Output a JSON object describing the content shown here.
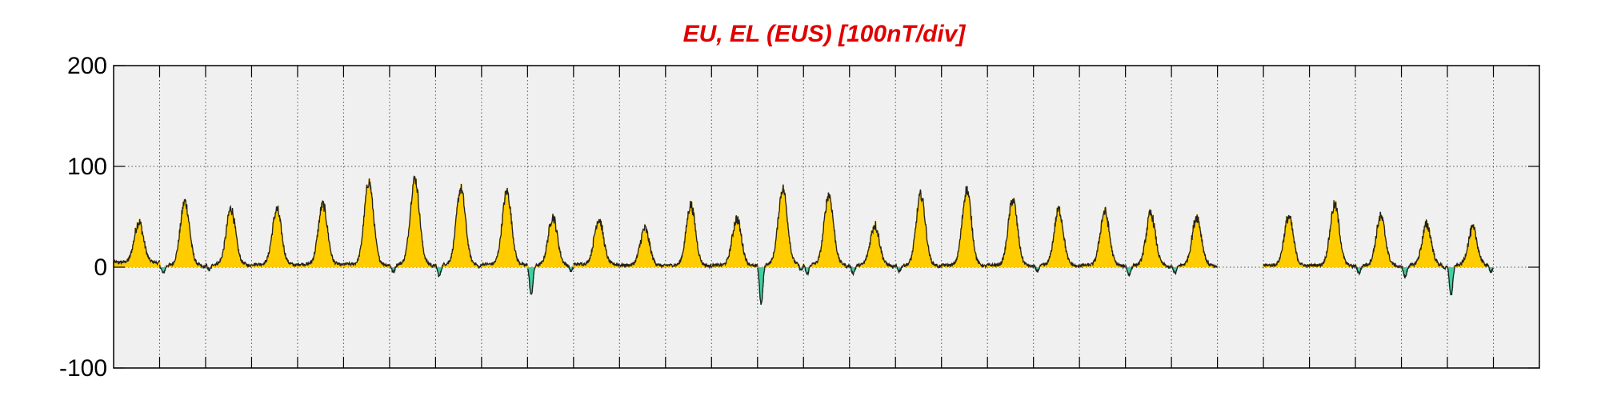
{
  "chart_data": {
    "type": "area",
    "title": "EU, EL (EUS)  [100nT/div]",
    "xlabel": "",
    "ylabel": "",
    "ylim": [
      -100,
      200
    ],
    "yticks": [
      -100,
      0,
      100,
      200
    ],
    "x_range": [
      0,
      31
    ],
    "x_grid": [
      1,
      2,
      3,
      4,
      5,
      6,
      7,
      8,
      9,
      10,
      11,
      12,
      13,
      14,
      15,
      16,
      17,
      18,
      19,
      20,
      21,
      22,
      23,
      24,
      25,
      26,
      27,
      28,
      29,
      30
    ],
    "x_grid_visible": true,
    "y_grid_visible": true,
    "background_color": "#f0f0f0",
    "colors": {
      "title": "#e00000",
      "positive_fill": "#ffcc00",
      "negative_fill": "#40d0a0",
      "line": "#222222"
    },
    "series": [
      {
        "type": "eu_el_envelope",
        "days": [
          {
            "peak": 45,
            "min": -3,
            "base": 5
          },
          {
            "peak": 65,
            "min": -8,
            "base": 2
          },
          {
            "peak": 58,
            "min": -6,
            "base": 3
          },
          {
            "peak": 57,
            "min": -4,
            "base": 3
          },
          {
            "peak": 62,
            "min": -3,
            "base": 3
          },
          {
            "peak": 85,
            "min": -4,
            "base": 3
          },
          {
            "peak": 88,
            "min": -8,
            "base": 3
          },
          {
            "peak": 78,
            "min": -12,
            "base": 3
          },
          {
            "peak": 75,
            "min": -5,
            "base": 3
          },
          {
            "peak": 50,
            "min": -30,
            "base": 2
          },
          {
            "peak": 48,
            "min": -2,
            "base": 3
          },
          {
            "peak": 38,
            "min": -3,
            "base": 2
          },
          {
            "peak": 62,
            "min": -4,
            "base": 2
          },
          {
            "peak": 48,
            "min": -5,
            "base": 2
          },
          {
            "peak": 78,
            "min": -40,
            "base": 3
          },
          {
            "peak": 72,
            "min": -10,
            "base": 3
          },
          {
            "peak": 42,
            "min": -8,
            "base": 2
          },
          {
            "peak": 72,
            "min": -6,
            "base": 2
          },
          {
            "peak": 77,
            "min": -4,
            "base": 2
          },
          {
            "peak": 67,
            "min": -5,
            "base": 2
          },
          {
            "peak": 57,
            "min": -6,
            "base": 2
          },
          {
            "peak": 55,
            "min": -5,
            "base": 2
          },
          {
            "peak": 53,
            "min": -10,
            "base": 2
          },
          {
            "peak": 50,
            "min": -8,
            "base": 2
          },
          {
            "peak": 0,
            "min": 0,
            "base": 0
          },
          {
            "peak": 50,
            "min": -3,
            "base": 2
          },
          {
            "peak": 62,
            "min": -5,
            "base": 2
          },
          {
            "peak": 50,
            "min": -8,
            "base": 2
          },
          {
            "peak": 42,
            "min": -12,
            "base": 2
          },
          {
            "peak": 38,
            "min": -30,
            "base": 2
          }
        ]
      }
    ]
  }
}
